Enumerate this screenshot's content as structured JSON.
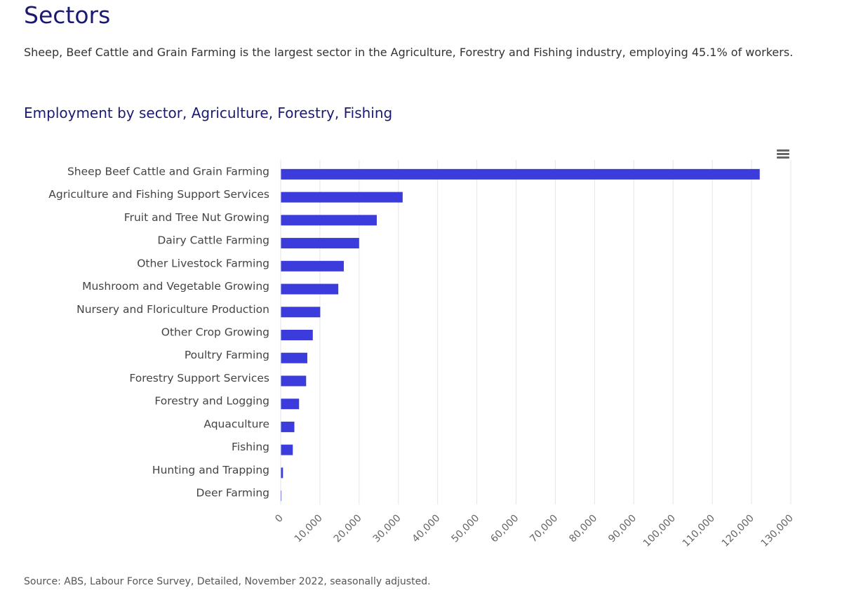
{
  "page": {
    "title": "Sectors",
    "intro": "Sheep, Beef Cattle and Grain Farming is the largest sector in the Agriculture, Forestry and Fishing industry, employing 45.1% of workers.",
    "source": "Source: ABS, Labour Force Survey, Detailed, November 2022, seasonally adjusted."
  },
  "chart_menu": {
    "icon": "hamburger-menu-icon"
  },
  "chart_data": {
    "type": "bar",
    "orientation": "horizontal",
    "title": "Employment by sector, Agriculture, Forestry, Fishing",
    "xlabel": "",
    "ylabel": "",
    "categories": [
      "Sheep Beef Cattle and Grain Farming",
      "Agriculture and Fishing Support Services",
      "Fruit and Tree Nut Growing",
      "Dairy Cattle Farming",
      "Other Livestock Farming",
      "Mushroom and Vegetable Growing",
      "Nursery and Floriculture Production",
      "Other Crop Growing",
      "Poultry Farming",
      "Forestry Support Services",
      "Forestry and Logging",
      "Aquaculture",
      "Fishing",
      "Hunting and Trapping",
      "Deer Farming"
    ],
    "values": [
      122000,
      31000,
      24400,
      19900,
      16000,
      14600,
      10000,
      8100,
      6700,
      6400,
      4600,
      3400,
      3000,
      500,
      50
    ],
    "xlim": [
      0,
      130000
    ],
    "xticks": [
      0,
      10000,
      20000,
      30000,
      40000,
      50000,
      60000,
      70000,
      80000,
      90000,
      100000,
      110000,
      120000,
      130000
    ],
    "xtick_labels": [
      "0",
      "10,000",
      "20,000",
      "30,000",
      "40,000",
      "50,000",
      "60,000",
      "70,000",
      "80,000",
      "90,000",
      "100,000",
      "110,000",
      "120,000",
      "130,000"
    ],
    "grid": true,
    "legend": "none",
    "bar_color": "#3c3cdc",
    "grid_color": "#e6e6e6"
  }
}
